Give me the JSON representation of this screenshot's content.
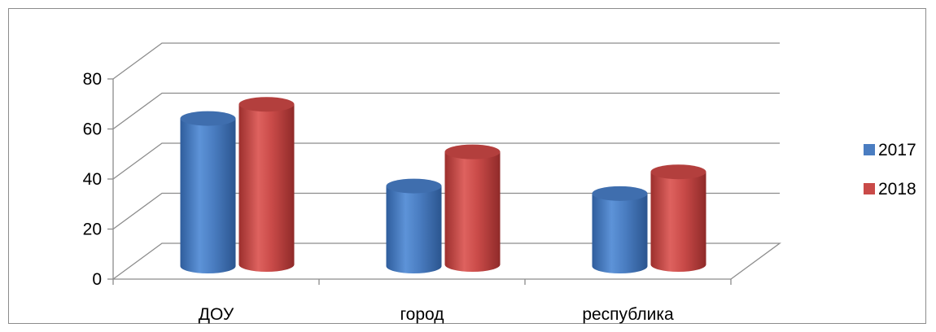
{
  "chart_data": {
    "type": "bar",
    "style": "3d-cylinder",
    "categories": [
      "ДОУ",
      "город",
      "республика"
    ],
    "series": [
      {
        "name": "2017",
        "values": [
          59,
          32,
          29
        ],
        "color": "#4a7dc1"
      },
      {
        "name": "2018",
        "values": [
          64,
          45,
          37
        ],
        "color": "#c94a48"
      }
    ],
    "yticks": [
      "0",
      "20",
      "40",
      "60",
      "80"
    ],
    "ylim": [
      0,
      80
    ],
    "grid": true,
    "legend_position": "right"
  }
}
